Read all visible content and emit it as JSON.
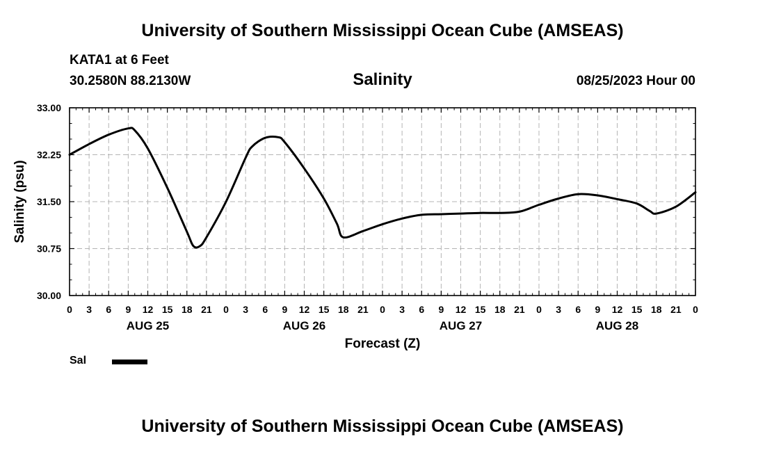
{
  "header": {
    "title": "University of Southern Mississippi Ocean Cube (AMSEAS)",
    "station": "KATA1 at 6 Feet",
    "coordinates": "30.2580N  88.2130W",
    "run_time": "08/25/2023 Hour 00"
  },
  "footer": {
    "title": "University of Southern Mississippi Ocean Cube (AMSEAS)"
  },
  "legend": {
    "label": "Sal"
  },
  "chart_data": {
    "type": "line",
    "title": "Salinity",
    "xlabel": "Forecast (Z)",
    "ylabel": "Salinity (psu)",
    "xlim": [
      0,
      96
    ],
    "ylim": [
      30.0,
      33.0
    ],
    "yticks": [
      "30.00",
      "30.75",
      "31.50",
      "32.25",
      "33.00"
    ],
    "xtick_step_hours": 3,
    "xtick_labels": [
      "0",
      "3",
      "6",
      "9",
      "12",
      "15",
      "18",
      "21",
      "0",
      "3",
      "6",
      "9",
      "12",
      "15",
      "18",
      "21",
      "0",
      "3",
      "6",
      "9",
      "12",
      "15",
      "18",
      "21",
      "0",
      "3",
      "6",
      "9",
      "12",
      "15",
      "18",
      "21",
      "0"
    ],
    "day_labels": [
      {
        "hour": 12,
        "label": "AUG 25"
      },
      {
        "hour": 36,
        "label": "AUG 26"
      },
      {
        "hour": 60,
        "label": "AUG 27"
      },
      {
        "hour": 84,
        "label": "AUG 28"
      }
    ],
    "grid": true,
    "series": [
      {
        "name": "Sal",
        "x": [
          0,
          3,
          6,
          9,
          10,
          12,
          15,
          18,
          19,
          20,
          21,
          24,
          27,
          28,
          30,
          32,
          33,
          36,
          39,
          41,
          42,
          45,
          48,
          51,
          54,
          57,
          60,
          63,
          66,
          69,
          72,
          75,
          78,
          81,
          84,
          87,
          89,
          90,
          93,
          96
        ],
        "values": [
          32.25,
          32.42,
          32.57,
          32.67,
          32.64,
          32.35,
          31.72,
          31.02,
          30.79,
          30.79,
          30.93,
          31.5,
          32.2,
          32.38,
          32.52,
          32.53,
          32.45,
          32.03,
          31.55,
          31.15,
          30.93,
          31.03,
          31.14,
          31.23,
          31.29,
          31.3,
          31.31,
          31.32,
          31.32,
          31.34,
          31.45,
          31.55,
          31.62,
          31.6,
          31.54,
          31.47,
          31.35,
          31.31,
          31.42,
          31.65
        ]
      }
    ]
  }
}
